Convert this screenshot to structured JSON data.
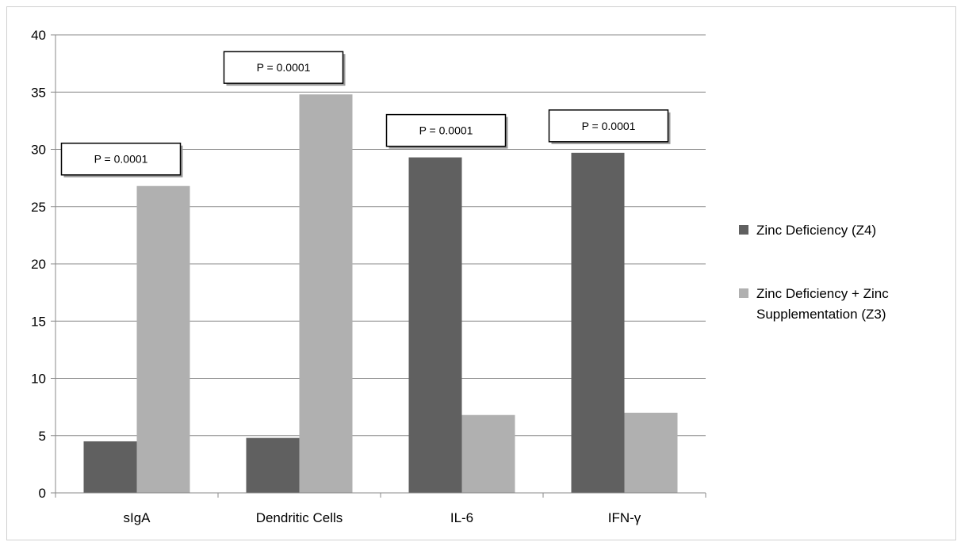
{
  "chart_data": {
    "type": "bar",
    "categories": [
      "sIgA",
      "Dendritic Cells",
      "IL-6",
      "IFN-γ"
    ],
    "series": [
      {
        "name": "Zinc Deficiency (Z4)",
        "values": [
          4.5,
          4.8,
          29.3,
          29.7
        ],
        "color": "#606060"
      },
      {
        "name": "Zinc Deficiency + Zinc Supplementation (Z3)",
        "values": [
          26.8,
          34.8,
          6.8,
          7.0
        ],
        "color": "#b0b0b0"
      }
    ],
    "ylim": [
      0,
      40
    ],
    "yticks": [
      0,
      5,
      10,
      15,
      20,
      25,
      30,
      35,
      40
    ],
    "grid": true,
    "legend_position": "right",
    "legend_lines": [
      [
        "Zinc Deficiency (Z4)"
      ],
      [
        "Zinc Deficiency + Zinc",
        "Supplementation (Z3)"
      ]
    ],
    "annotations": [
      {
        "category": "sIgA",
        "text": "P = 0.0001"
      },
      {
        "category": "Dendritic Cells",
        "text": "P = 0.0001"
      },
      {
        "category": "IL-6",
        "text": "P = 0.0001"
      },
      {
        "category": "IFN-γ",
        "text": "P = 0.0001"
      }
    ]
  }
}
